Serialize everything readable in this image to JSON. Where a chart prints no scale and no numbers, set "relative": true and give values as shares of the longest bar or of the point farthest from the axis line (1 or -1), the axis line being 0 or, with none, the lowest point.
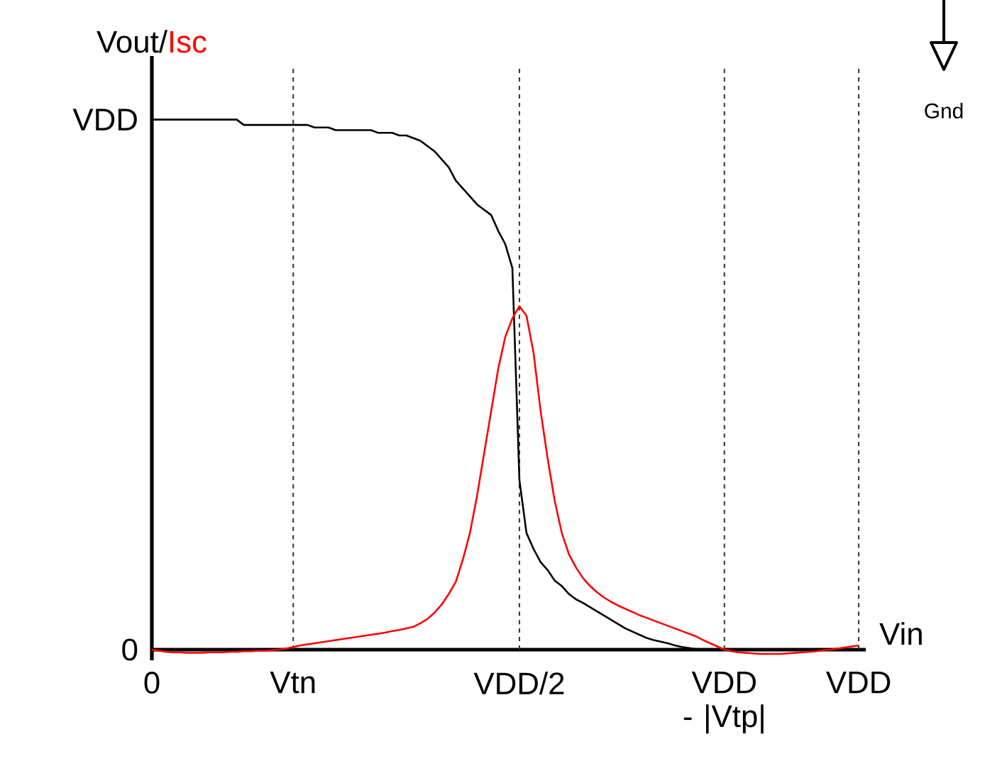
{
  "chart_data": {
    "type": "line",
    "relative": true,
    "xlabel": "Vin",
    "categories": [
      "0",
      null,
      null,
      null,
      null,
      null,
      null,
      null,
      null,
      null,
      null,
      null,
      null,
      null,
      null,
      null,
      null,
      null,
      null,
      null,
      "Vtn",
      null,
      null,
      null,
      null,
      null,
      null,
      null,
      null,
      null,
      null,
      null,
      null,
      null,
      null,
      null,
      null,
      null,
      null,
      null,
      null,
      null,
      null,
      null,
      null,
      null,
      null,
      null,
      null,
      null,
      null,
      null,
      "VDD/2",
      null,
      null,
      null,
      null,
      null,
      null,
      null,
      null,
      null,
      null,
      null,
      null,
      null,
      null,
      null,
      null,
      null,
      null,
      null,
      null,
      null,
      null,
      null,
      null,
      null,
      null,
      null,
      null,
      "VDD - |Vtp|",
      null,
      null,
      null,
      null,
      null,
      null,
      null,
      null,
      null,
      null,
      null,
      null,
      null,
      null,
      null,
      null,
      null,
      null,
      "VDD"
    ],
    "series": [
      {
        "name": "Vout",
        "color": "#000000",
        "values": [
          1.0,
          1.0,
          1.0,
          1.0,
          1.0,
          1.0,
          1.0,
          1.0,
          1.0,
          1.0,
          1.0,
          1.0,
          1.0,
          0.99,
          0.99,
          0.99,
          0.99,
          0.99,
          0.99,
          0.99,
          0.99,
          0.99,
          0.99,
          0.985,
          0.985,
          0.985,
          0.98,
          0.98,
          0.98,
          0.98,
          0.98,
          0.98,
          0.975,
          0.975,
          0.975,
          0.97,
          0.97,
          0.965,
          0.96,
          0.95,
          0.94,
          0.925,
          0.91,
          0.885,
          0.87,
          0.855,
          0.84,
          0.83,
          0.82,
          0.79,
          0.765,
          0.72,
          0.32,
          0.22,
          0.19,
          0.165,
          0.15,
          0.13,
          0.12,
          0.105,
          0.095,
          0.088,
          0.08,
          0.072,
          0.064,
          0.056,
          0.048,
          0.04,
          0.034,
          0.028,
          0.022,
          0.018,
          0.015,
          0.012,
          0.008,
          0.005,
          0.003,
          0.001,
          0,
          0,
          0,
          0,
          0,
          0,
          0,
          0,
          0,
          0,
          0,
          0,
          0,
          0,
          0,
          0,
          0,
          0,
          0,
          0,
          0,
          0,
          0
        ]
      },
      {
        "name": "Isc",
        "color": "#ff0000",
        "values": [
          0,
          -0.002,
          -0.004,
          -0.005,
          -0.005,
          -0.006,
          -0.006,
          -0.006,
          -0.005,
          -0.005,
          -0.005,
          -0.004,
          -0.004,
          -0.003,
          -0.003,
          -0.002,
          -0.002,
          -0.001,
          0,
          0.002,
          0.005,
          0.008,
          0.01,
          0.012,
          0.014,
          0.016,
          0.018,
          0.02,
          0.022,
          0.024,
          0.026,
          0.028,
          0.03,
          0.032,
          0.035,
          0.037,
          0.04,
          0.043,
          0.05,
          0.058,
          0.07,
          0.085,
          0.105,
          0.128,
          0.17,
          0.22,
          0.29,
          0.37,
          0.45,
          0.53,
          0.59,
          0.625,
          0.648,
          0.63,
          0.56,
          0.45,
          0.36,
          0.28,
          0.22,
          0.18,
          0.155,
          0.135,
          0.12,
          0.108,
          0.098,
          0.09,
          0.083,
          0.077,
          0.071,
          0.065,
          0.06,
          0.055,
          0.05,
          0.045,
          0.04,
          0.035,
          0.03,
          0.025,
          0.018,
          0.012,
          0.006,
          0,
          -0.003,
          -0.005,
          -0.006,
          -0.007,
          -0.008,
          -0.008,
          -0.008,
          -0.008,
          -0.007,
          -0.006,
          -0.005,
          -0.004,
          -0.003,
          -0.001,
          0,
          0.002,
          0.004,
          0.006,
          0.008
        ]
      }
    ],
    "ref_lines": [
      {
        "axis": "x",
        "value": "Vtn",
        "color": "#333333",
        "line_style": "dashed"
      },
      {
        "axis": "x",
        "value": "VDD/2",
        "color": "#333333",
        "line_style": "dashed"
      },
      {
        "axis": "x",
        "value": "VDD - |Vtp|",
        "color": "#333333",
        "line_style": "dashed"
      },
      {
        "axis": "x",
        "value": "VDD",
        "color": "#333333",
        "line_style": "dashed"
      }
    ],
    "annotations": [
      "Gnd",
      "/",
      {
        "text": "VDD",
        "x": "0",
        "y": 1
      },
      {
        "text": "0",
        "x": "0",
        "y": 0
      }
    ],
    "legend": false,
    "marker": "none",
    "line_style": "solid"
  }
}
